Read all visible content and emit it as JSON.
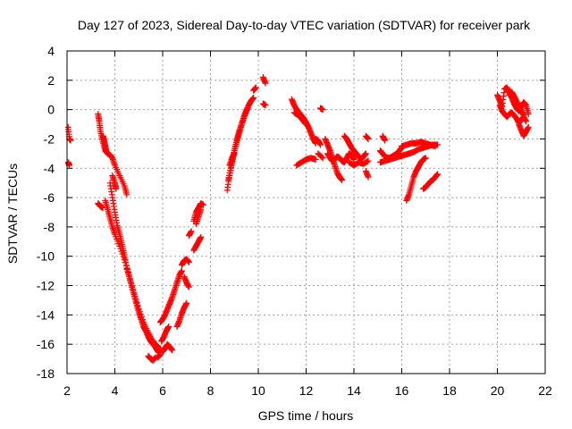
{
  "chart_data": {
    "type": "scatter",
    "title": "Day 127 of 2023, Sidereal Day-to-day VTEC variation (SDTVAR) for receiver park",
    "xlabel": "GPS time / hours",
    "ylabel": "SDTVAR / TECUs",
    "xlim": [
      2,
      22
    ],
    "ylim": [
      -18,
      4
    ],
    "xticks": [
      2,
      4,
      6,
      8,
      10,
      12,
      14,
      16,
      18,
      20,
      22
    ],
    "yticks": [
      4,
      2,
      0,
      -2,
      -4,
      -6,
      -8,
      -10,
      -12,
      -14,
      -16,
      -18
    ],
    "grid": true,
    "marker": "+",
    "color": "#ff0000",
    "series": [
      {
        "name": "SDTVAR",
        "segments": [
          {
            "x": [
              2.05,
              2.1,
              2.15
            ],
            "y": [
              -1.2,
              -2.0,
              -2.1
            ]
          },
          {
            "x": [
              2.05,
              2.1
            ],
            "y": [
              -3.6,
              -3.8
            ]
          },
          {
            "x": [
              3.3,
              3.35,
              3.4,
              3.5,
              3.6,
              3.7,
              3.8,
              3.9,
              4.0,
              4.2,
              4.4,
              4.5
            ],
            "y": [
              -0.3,
              -0.8,
              -1.5,
              -2.2,
              -2.8,
              -3.0,
              -3.1,
              -3.3,
              -3.8,
              -4.5,
              -5.2,
              -5.8
            ]
          },
          {
            "x": [
              3.5,
              3.55,
              3.6,
              3.65
            ],
            "y": [
              -1.8,
              -2.1,
              -2.5,
              -2.9
            ]
          },
          {
            "x": [
              3.3,
              3.4,
              3.5
            ],
            "y": [
              -6.4,
              -6.6,
              -6.7
            ]
          },
          {
            "x": [
              3.6,
              3.7,
              3.8,
              3.9,
              4.0,
              4.2,
              4.4,
              4.6,
              4.8,
              5.0,
              5.2,
              5.4,
              5.6,
              5.8,
              5.9
            ],
            "y": [
              -6.2,
              -6.8,
              -7.4,
              -8.0,
              -8.5,
              -9.3,
              -10.2,
              -11.3,
              -12.5,
              -13.6,
              -14.5,
              -15.2,
              -15.8,
              -16.2,
              -16.3
            ]
          },
          {
            "x": [
              3.8,
              3.9,
              4.0,
              4.1,
              4.2,
              4.3,
              4.4,
              4.5,
              4.6,
              4.7,
              4.8,
              4.9,
              5.0,
              5.1,
              5.2,
              5.3,
              5.4,
              5.5,
              5.6,
              5.7,
              5.8,
              5.9
            ],
            "y": [
              -5.0,
              -6.0,
              -7.0,
              -7.9,
              -8.5,
              -9.2,
              -9.9,
              -10.8,
              -11.4,
              -12.0,
              -12.6,
              -13.2,
              -13.8,
              -14.3,
              -14.8,
              -15.1,
              -15.5,
              -15.8,
              -16.0,
              -16.2,
              -16.5,
              -16.6
            ]
          },
          {
            "x": [
              3.9,
              4.0,
              4.05
            ],
            "y": [
              -4.5,
              -5.0,
              -5.4
            ]
          },
          {
            "x": [
              5.4,
              5.5,
              5.6,
              5.7
            ],
            "y": [
              -16.8,
              -17.0,
              -17.1,
              -16.9
            ]
          },
          {
            "x": [
              5.9,
              6.0,
              6.1,
              6.2,
              6.3,
              6.4,
              6.5,
              6.6,
              6.7,
              6.8
            ],
            "y": [
              -14.5,
              -14.3,
              -14.0,
              -13.6,
              -13.2,
              -12.8,
              -12.3,
              -11.8,
              -11.3,
              -11.0
            ]
          },
          {
            "x": [
              5.95,
              6.05,
              6.15,
              6.25
            ],
            "y": [
              -15.8,
              -15.5,
              -15.1,
              -14.8
            ]
          },
          {
            "x": [
              6.0,
              6.1,
              6.2,
              6.3,
              6.4
            ],
            "y": [
              -16.5,
              -16.3,
              -16.0,
              -16.2,
              -16.4
            ]
          },
          {
            "x": [
              5.8,
              5.9
            ],
            "y": [
              -16.9,
              -16.7
            ]
          },
          {
            "x": [
              6.6,
              6.7,
              6.8,
              6.9,
              7.0
            ],
            "y": [
              -14.8,
              -14.4,
              -13.9,
              -13.5,
              -13.2
            ]
          },
          {
            "x": [
              6.8,
              6.9,
              7.0,
              7.1
            ],
            "y": [
              -10.6,
              -10.3,
              -10.2,
              -10.4
            ]
          },
          {
            "x": [
              6.9,
              7.0,
              7.1
            ],
            "y": [
              -11.4,
              -11.8,
              -12.1
            ]
          },
          {
            "x": [
              7.1,
              7.2
            ],
            "y": [
              -8.6,
              -8.3
            ]
          },
          {
            "x": [
              7.3,
              7.4,
              7.5,
              7.6,
              7.7
            ],
            "y": [
              -7.6,
              -7.0,
              -6.7,
              -6.4,
              -6.5
            ]
          },
          {
            "x": [
              7.3,
              7.4,
              7.5,
              7.6
            ],
            "y": [
              -9.6,
              -9.3,
              -9.0,
              -8.7
            ]
          },
          {
            "x": [
              7.4,
              7.5,
              7.6
            ],
            "y": [
              -7.8,
              -7.3,
              -6.8
            ]
          },
          {
            "x": [
              8.7,
              8.8,
              8.9,
              9.0,
              9.1,
              9.2,
              9.3,
              9.4,
              9.5,
              9.6,
              9.7,
              9.8
            ],
            "y": [
              -5.5,
              -4.5,
              -3.6,
              -2.8,
              -2.1,
              -1.5,
              -1.0,
              -0.5,
              -0.1,
              0.3,
              0.6,
              0.8
            ]
          },
          {
            "x": [
              8.75,
              8.85,
              8.95,
              9.05,
              9.15,
              9.25,
              9.35,
              9.45,
              9.55
            ],
            "y": [
              -4.8,
              -4.0,
              -3.2,
              -2.5,
              -1.9,
              -1.3,
              -0.8,
              -0.3,
              0.1
            ]
          },
          {
            "x": [
              8.8,
              8.9,
              9.0
            ],
            "y": [
              -3.8,
              -3.3,
              -3.0
            ]
          },
          {
            "x": [
              9.8,
              9.9
            ],
            "y": [
              1.3,
              1.5
            ]
          },
          {
            "x": [
              10.2,
              10.3
            ],
            "y": [
              2.2,
              1.8
            ]
          },
          {
            "x": [
              10.2,
              10.3
            ],
            "y": [
              0.4,
              0.3
            ]
          },
          {
            "x": [
              11.4,
              11.5,
              11.6,
              11.7,
              11.8,
              11.9,
              12.0,
              12.1,
              12.2,
              12.3,
              12.4
            ],
            "y": [
              0.7,
              0.3,
              0.0,
              -0.2,
              -0.4,
              -0.6,
              -0.9,
              -1.2,
              -1.6,
              -2.0,
              -2.3
            ]
          },
          {
            "x": [
              11.5,
              11.6,
              11.7,
              11.8,
              11.9,
              12.0
            ],
            "y": [
              -0.2,
              -0.3,
              -0.4,
              -0.6,
              -0.8,
              -1.0
            ]
          },
          {
            "x": [
              12.4,
              12.5,
              12.6
            ],
            "y": [
              -2.0,
              -2.1,
              -2.4
            ]
          },
          {
            "x": [
              12.6,
              12.7
            ],
            "y": [
              0.1,
              0.0
            ]
          },
          {
            "x": [
              11.6,
              11.8,
              12.0,
              12.2,
              12.4
            ],
            "y": [
              -3.8,
              -3.6,
              -3.4,
              -3.3,
              -3.4
            ]
          },
          {
            "x": [
              12.5,
              12.7
            ],
            "y": [
              -3.0,
              -3.3
            ]
          },
          {
            "x": [
              12.8,
              12.9,
              13.0,
              13.1,
              13.2,
              13.3,
              13.4,
              13.5
            ],
            "y": [
              -2.0,
              -2.4,
              -2.8,
              -3.3,
              -3.8,
              -4.3,
              -4.6,
              -4.8
            ]
          },
          {
            "x": [
              12.9,
              13.0,
              13.1,
              13.2,
              13.3,
              13.4,
              13.5,
              13.6,
              13.7,
              13.8,
              13.9,
              14.0
            ],
            "y": [
              -3.0,
              -3.3,
              -3.5,
              -3.4,
              -3.2,
              -3.3,
              -3.5,
              -3.6,
              -3.3,
              -3.0,
              -3.1,
              -3.4
            ]
          },
          {
            "x": [
              13.6,
              13.7,
              13.8,
              13.9,
              14.0,
              14.1,
              14.2,
              14.3,
              14.4,
              14.5
            ],
            "y": [
              -1.8,
              -2.0,
              -2.3,
              -2.6,
              -2.8,
              -3.0,
              -3.2,
              -3.4,
              -3.2,
              -3.0
            ]
          },
          {
            "x": [
              13.8,
              14.0,
              14.2,
              14.4,
              14.6
            ],
            "y": [
              -3.6,
              -3.8,
              -3.6,
              -3.7,
              -3.5
            ]
          },
          {
            "x": [
              14.5,
              14.6
            ],
            "y": [
              -4.2,
              -4.6
            ]
          },
          {
            "x": [
              14.5,
              14.6
            ],
            "y": [
              -1.8,
              -2.0
            ]
          },
          {
            "x": [
              15.1,
              15.2,
              15.3,
              15.4,
              15.5,
              15.6,
              15.7,
              15.8,
              15.9,
              16.0
            ],
            "y": [
              -2.8,
              -3.0,
              -3.2,
              -3.3,
              -3.3,
              -3.2,
              -3.1,
              -3.0,
              -2.8,
              -2.6
            ]
          },
          {
            "x": [
              15.1,
              15.3,
              15.5,
              15.7,
              15.9,
              16.1,
              16.3,
              16.5,
              16.7,
              16.9,
              17.1,
              17.3,
              17.5
            ],
            "y": [
              -3.6,
              -3.5,
              -3.4,
              -3.3,
              -3.2,
              -3.1,
              -3.0,
              -2.9,
              -2.7,
              -2.6,
              -2.5,
              -2.4,
              -2.4
            ]
          },
          {
            "x": [
              16.0,
              16.2,
              16.4,
              16.6,
              16.8,
              17.0,
              17.2,
              17.4
            ],
            "y": [
              -2.5,
              -2.4,
              -2.3,
              -2.3,
              -2.2,
              -2.3,
              -2.4,
              -2.5
            ]
          },
          {
            "x": [
              15.2,
              15.3
            ],
            "y": [
              -1.8,
              -2.1
            ]
          },
          {
            "x": [
              16.2,
              16.3,
              16.4,
              16.5,
              16.6,
              16.7,
              16.8,
              16.9,
              17.0
            ],
            "y": [
              -6.2,
              -5.8,
              -5.2,
              -4.6,
              -4.2,
              -3.9,
              -3.6,
              -3.4,
              -3.3
            ]
          },
          {
            "x": [
              16.9,
              17.0,
              17.1,
              17.2,
              17.3,
              17.4,
              17.5
            ],
            "y": [
              -5.4,
              -5.3,
              -5.1,
              -4.9,
              -4.8,
              -4.6,
              -4.4
            ]
          },
          {
            "x": [
              17.3,
              17.4
            ],
            "y": [
              -2.4,
              -2.5
            ]
          },
          {
            "x": [
              20.0,
              20.1,
              20.2,
              20.3,
              20.4,
              20.5,
              20.6,
              20.7,
              20.8,
              20.9,
              21.0,
              21.1,
              21.2,
              21.3
            ],
            "y": [
              1.0,
              0.6,
              0.2,
              1.4,
              1.5,
              1.2,
              0.8,
              0.4,
              0.1,
              -0.1,
              0.2,
              0.5,
              0.3,
              -0.3
            ]
          },
          {
            "x": [
              20.1,
              20.2,
              20.3,
              20.4,
              20.5,
              20.6,
              20.7,
              20.8,
              20.9,
              21.0,
              21.1,
              21.2
            ],
            "y": [
              0.3,
              -0.1,
              -0.3,
              -0.5,
              -0.3,
              -0.2,
              -0.4,
              -0.6,
              -0.9,
              -0.7,
              -0.5,
              -0.8
            ]
          },
          {
            "x": [
              20.5,
              20.6,
              20.7,
              20.8,
              20.9,
              21.0,
              21.1
            ],
            "y": [
              1.0,
              1.2,
              0.9,
              0.6,
              0.2,
              -0.1,
              -0.4
            ]
          },
          {
            "x": [
              20.9,
              21.0,
              21.1,
              21.2,
              21.3
            ],
            "y": [
              -1.0,
              -1.4,
              -1.8,
              -1.5,
              -1.2
            ]
          }
        ]
      }
    ]
  }
}
